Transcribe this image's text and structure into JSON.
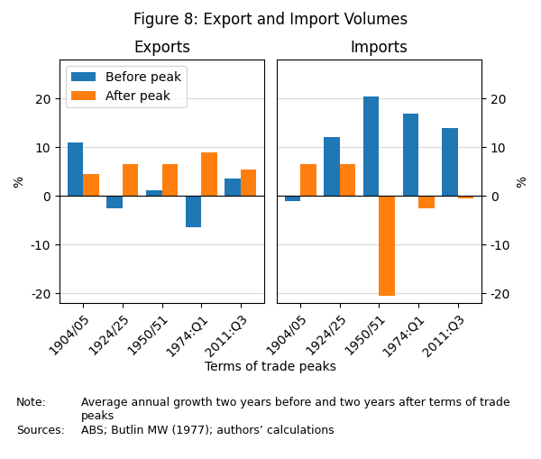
{
  "title": "Figure 8: Export and Import Volumes",
  "xlabel": "Terms of trade peaks",
  "annotations": [
    "Note:",
    "Average annual growth two years before and two years after terms of trade peaks",
    "Sources:",
    "ABS; Butlin MW (1977); authors’ calculations"
  ],
  "chart_data": [
    {
      "type": "bar",
      "title": "Exports",
      "ylabel": "%",
      "categories": [
        "1904/05",
        "1924/25",
        "1950/51",
        "1974:Q1",
        "2011:Q3"
      ],
      "series": [
        {
          "name": "Before peak",
          "values": [
            11,
            -2.5,
            1.2,
            -6.5,
            3.5
          ]
        },
        {
          "name": "After peak",
          "values": [
            4.5,
            6.5,
            6.5,
            9.0,
            5.5
          ]
        }
      ],
      "ylim": [
        -22,
        28
      ],
      "yticks": [
        -20,
        -10,
        0,
        10,
        20
      ],
      "grid": true,
      "legend": "upper left"
    },
    {
      "type": "bar",
      "title": "Imports",
      "ylabel": "%",
      "categories": [
        "1904/05",
        "1924/25",
        "1950/51",
        "1974:Q1",
        "2011:Q3"
      ],
      "series": [
        {
          "name": "Before peak",
          "values": [
            -1.0,
            12.0,
            20.5,
            17.0,
            14.0
          ]
        },
        {
          "name": "After peak",
          "values": [
            6.5,
            6.5,
            -20.5,
            -2.5,
            -0.5
          ]
        }
      ],
      "ylim": [
        -22,
        28
      ],
      "yticks": [
        -20,
        -10,
        0,
        10,
        20
      ],
      "grid": true
    }
  ]
}
